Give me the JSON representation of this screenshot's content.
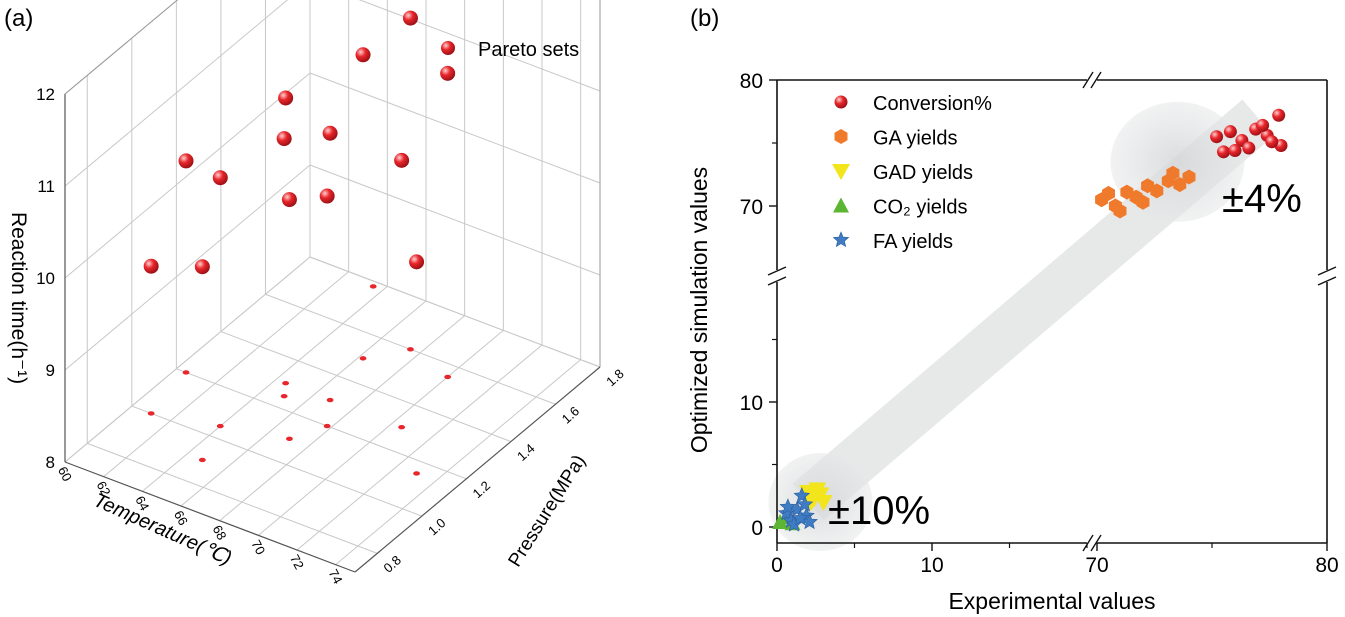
{
  "panels": {
    "a_label": "(a)",
    "b_label": "(b)"
  },
  "colors": {
    "red": "#e8262b",
    "orange": "#f07a2c",
    "yellow": "#f2e51c",
    "green": "#5cb533",
    "blue": "#3f7cc4",
    "band": "#d9dbdd",
    "grid": "#c8c8c8"
  },
  "chart_data": [
    {
      "type": "scatter",
      "projection": "3d",
      "panel": "(a)",
      "legend": [
        "Pareto sets"
      ],
      "xlabel": "Temperature(℃)",
      "ylabel": "Pressure(MPa)",
      "zlabel": "Reaction time(h⁻¹)",
      "xlim": [
        60,
        75
      ],
      "ylim": [
        0.7,
        1.8
      ],
      "zlim": [
        8,
        12
      ],
      "xticks": [
        "60",
        "62",
        "64",
        "66",
        "68",
        "70",
        "72",
        "74"
      ],
      "yticks": [
        "0.8",
        "1.0",
        "1.2",
        "1.4",
        "1.6",
        "1.8"
      ],
      "zticks": [
        "8",
        "9",
        "10",
        "11",
        "12"
      ],
      "series": [
        {
          "name": "Pareto sets",
          "points": [
            {
              "x": 60.5,
              "y": 1.2,
              "z": 10.3
            },
            {
              "x": 61.0,
              "y": 1.0,
              "z": 9.6
            },
            {
              "x": 63.5,
              "y": 1.78,
              "z": 12.6
            },
            {
              "x": 64.5,
              "y": 1.3,
              "z": 11.1
            },
            {
              "x": 64.0,
              "y": 1.05,
              "z": 10.7
            },
            {
              "x": 65.0,
              "y": 1.25,
              "z": 10.8
            },
            {
              "x": 66.2,
              "y": 1.5,
              "z": 11.3
            },
            {
              "x": 67.5,
              "y": 1.6,
              "z": 11.6
            },
            {
              "x": 66.8,
              "y": 1.3,
              "z": 10.9
            },
            {
              "x": 67.0,
              "y": 1.1,
              "z": 10.6
            },
            {
              "x": 67.8,
              "y": 1.2,
              "z": 10.5
            },
            {
              "x": 64.8,
              "y": 0.9,
              "z": 10.1
            },
            {
              "x": 70.0,
              "y": 1.55,
              "z": 11.3
            },
            {
              "x": 70.5,
              "y": 1.3,
              "z": 10.9
            },
            {
              "x": 73.0,
              "y": 1.15,
              "z": 10.3
            }
          ]
        }
      ]
    },
    {
      "type": "scatter",
      "panel": "(b)",
      "xlabel": "Experimental values",
      "ylabel": "Optimized simulation values",
      "broken_axes": true,
      "x_segments": [
        [
          0,
          20
        ],
        [
          70,
          80
        ]
      ],
      "y_segments": [
        [
          0,
          20
        ],
        [
          62,
          80
        ]
      ],
      "xticks": [
        "0",
        "10",
        "70",
        "80"
      ],
      "yticks": [
        "0",
        "10",
        "70",
        "80"
      ],
      "annotations": [
        "±4%",
        "±10%"
      ],
      "series": [
        {
          "name": "Conversion%",
          "marker": "circle",
          "x": [
            75.2,
            75.8,
            76.3,
            76.9,
            77.4,
            77.9,
            75.5,
            76.6,
            77.2,
            78.0,
            76.0,
            77.6
          ],
          "y": [
            75.5,
            75.9,
            75.2,
            76.1,
            75.6,
            77.2,
            74.3,
            74.6,
            76.4,
            74.8,
            74.4,
            75.1
          ]
        },
        {
          "name": "GA yields",
          "marker": "hexagon",
          "x": [
            70.2,
            70.8,
            71.3,
            71.7,
            72.2,
            72.6,
            73.1,
            73.6,
            74.0,
            71.0,
            72.0,
            73.3,
            70.5
          ],
          "y": [
            70.5,
            70.0,
            71.1,
            70.7,
            71.6,
            71.2,
            72.0,
            71.7,
            72.3,
            69.6,
            70.3,
            72.6,
            71.0
          ]
        },
        {
          "name": "GAD yields",
          "marker": "triangle-down",
          "x": [
            2.0,
            2.4,
            2.8,
            3.0,
            2.2,
            2.6
          ],
          "y": [
            2.8,
            2.3,
            2.6,
            2.0,
            2.0,
            3.0
          ]
        },
        {
          "name": "CO₂ yields",
          "marker": "triangle-up",
          "x": [
            0.2,
            0.6,
            1.0
          ],
          "y": [
            0.4,
            0.8,
            0.3
          ]
        },
        {
          "name": "FA yields",
          "marker": "star",
          "x": [
            0.6,
            0.9,
            1.3,
            1.6,
            1.9,
            2.1,
            1.1,
            1.8,
            0.7,
            1.5
          ],
          "y": [
            1.1,
            0.5,
            1.4,
            2.5,
            0.9,
            0.4,
            0.2,
            1.8,
            1.6,
            0.7
          ]
        }
      ]
    }
  ]
}
